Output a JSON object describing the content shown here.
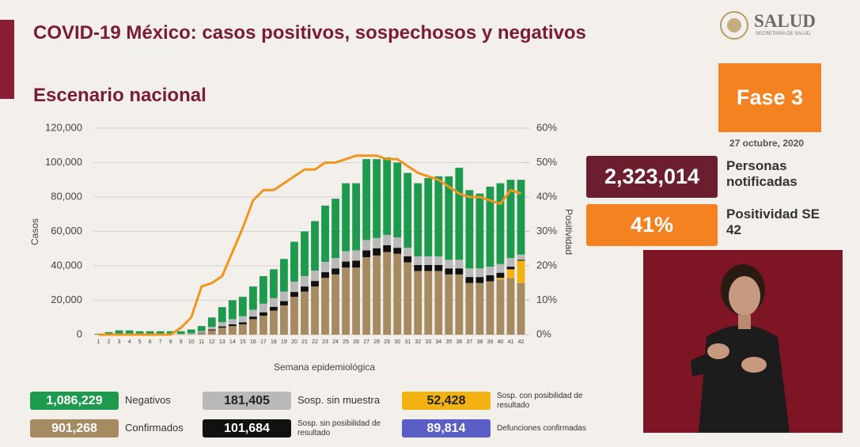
{
  "header": {
    "title": "COVID-19 México: casos positivos, sospechosos y negativos",
    "subtitle": "Escenario nacional",
    "logo": "SALUD",
    "logo_sub": "SECRETARÍA DE SALUD"
  },
  "phase": {
    "label": "Fase 3",
    "date": "27 octubre, 2020"
  },
  "stats": [
    {
      "value": "2,323,014",
      "label": "Personas notificadas"
    },
    {
      "value": "41%",
      "label": "Positividad SE 42"
    }
  ],
  "chart_data": {
    "type": "bar",
    "stacked": true,
    "x_label": "Semana epidemiológica",
    "y_label": "Casos",
    "y2_label": "Positividad",
    "categories": [
      "1",
      "2",
      "3",
      "4",
      "5",
      "6",
      "7",
      "8",
      "9",
      "10",
      "11",
      "12",
      "13",
      "14",
      "15",
      "16",
      "17",
      "18",
      "19",
      "20",
      "21",
      "22",
      "23",
      "24",
      "25",
      "26",
      "27",
      "28",
      "29",
      "30",
      "31",
      "32",
      "33",
      "34",
      "35",
      "36",
      "37",
      "38",
      "39",
      "40",
      "41",
      "42"
    ],
    "ylim": [
      0,
      120000
    ],
    "yticks": [
      0,
      {
        "value": 20000,
        "label": "20,000"
      },
      {
        "value": 40000,
        "label": "40,000"
      },
      {
        "value": 60000,
        "label": "60,000"
      },
      {
        "value": 80000,
        "label": "80,000"
      },
      {
        "value": 100000,
        "label": "100,000"
      },
      {
        "value": 120000,
        "label": "120,000"
      }
    ],
    "y2lim": [
      0,
      60
    ],
    "y2ticks": [
      {
        "value": 0,
        "label": "0%"
      },
      {
        "value": 10,
        "label": "10%"
      },
      {
        "value": 20,
        "label": "20%"
      },
      {
        "value": 30,
        "label": "30%"
      },
      {
        "value": 40,
        "label": "40%"
      },
      {
        "value": 50,
        "label": "50%"
      },
      {
        "value": 60,
        "label": "60%"
      }
    ],
    "grid": true,
    "series": [
      {
        "name": "Confirmados",
        "color": "#a68a62",
        "total": "901,268",
        "values": [
          0,
          100,
          200,
          200,
          200,
          200,
          200,
          200,
          200,
          300,
          1000,
          2500,
          4000,
          5000,
          6000,
          9000,
          11000,
          14000,
          17000,
          22000,
          25000,
          28000,
          33000,
          35000,
          39000,
          39000,
          45000,
          46000,
          48000,
          47000,
          42000,
          37000,
          37000,
          37000,
          35000,
          35000,
          30000,
          30000,
          31000,
          32000,
          33000,
          30000
        ]
      },
      {
        "name": "Sosp. con posibilidad de resultado",
        "color": "#f2b212",
        "total": "52,428",
        "values": [
          0,
          0,
          0,
          0,
          0,
          0,
          0,
          0,
          0,
          0,
          0,
          0,
          0,
          0,
          0,
          0,
          0,
          0,
          0,
          0,
          0,
          0,
          0,
          0,
          0,
          0,
          0,
          0,
          0,
          0,
          0,
          0,
          0,
          0,
          0,
          0,
          0,
          0,
          0,
          1000,
          5000,
          13000
        ]
      },
      {
        "name": "Sosp. sin posibilidad de resultado",
        "color": "#111111",
        "total": "101,684",
        "values": [
          0,
          0,
          0,
          0,
          0,
          0,
          0,
          0,
          0,
          0,
          200,
          500,
          800,
          1000,
          1200,
          1500,
          2000,
          2200,
          2500,
          2800,
          3000,
          3200,
          3300,
          3500,
          3500,
          4000,
          4000,
          4200,
          4000,
          3500,
          3500,
          3500,
          3500,
          3500,
          3500,
          3500,
          3500,
          3500,
          3500,
          3000,
          1500,
          500
        ]
      },
      {
        "name": "Sosp. sin muestra",
        "color": "#b9b9b9",
        "total": "181,405",
        "values": [
          100,
          200,
          300,
          300,
          300,
          300,
          300,
          300,
          300,
          500,
          800,
          1500,
          2500,
          3000,
          3500,
          4000,
          5000,
          5000,
          5500,
          6000,
          6000,
          6000,
          6000,
          6000,
          6000,
          6000,
          6000,
          6000,
          6000,
          6000,
          5000,
          5000,
          5000,
          5000,
          5000,
          5000,
          5000,
          5000,
          5000,
          5000,
          5000,
          3000
        ]
      },
      {
        "name": "Negativos",
        "color": "#1e9a4e",
        "total": "1,086,229",
        "values": [
          400,
          1200,
          2000,
          2000,
          1500,
          1500,
          1500,
          1500,
          1500,
          2200,
          3000,
          5500,
          8700,
          11000,
          11300,
          13500,
          16000,
          16800,
          19000,
          23200,
          26000,
          28800,
          32700,
          34500,
          39500,
          39000,
          47000,
          45800,
          45000,
          43500,
          43500,
          42500,
          45500,
          46500,
          48500,
          53500,
          45500,
          43500,
          46500,
          47000,
          45500,
          43500
        ]
      },
      {
        "type": "line",
        "axis": "y2",
        "color": "#f0961e",
        "values": [
          0,
          0,
          0,
          0,
          0,
          0,
          0,
          0,
          2,
          5,
          14,
          15,
          17,
          24,
          31,
          39,
          42,
          42,
          44,
          46,
          48,
          48,
          50,
          50,
          51,
          52,
          52,
          52,
          51,
          51,
          49,
          47,
          46,
          45,
          43,
          41,
          40,
          40,
          39,
          38,
          42,
          41
        ]
      }
    ]
  },
  "extra_legend": {
    "name": "Defunciones confirmadas",
    "color": "#5b5ec4",
    "total": "89,814"
  }
}
